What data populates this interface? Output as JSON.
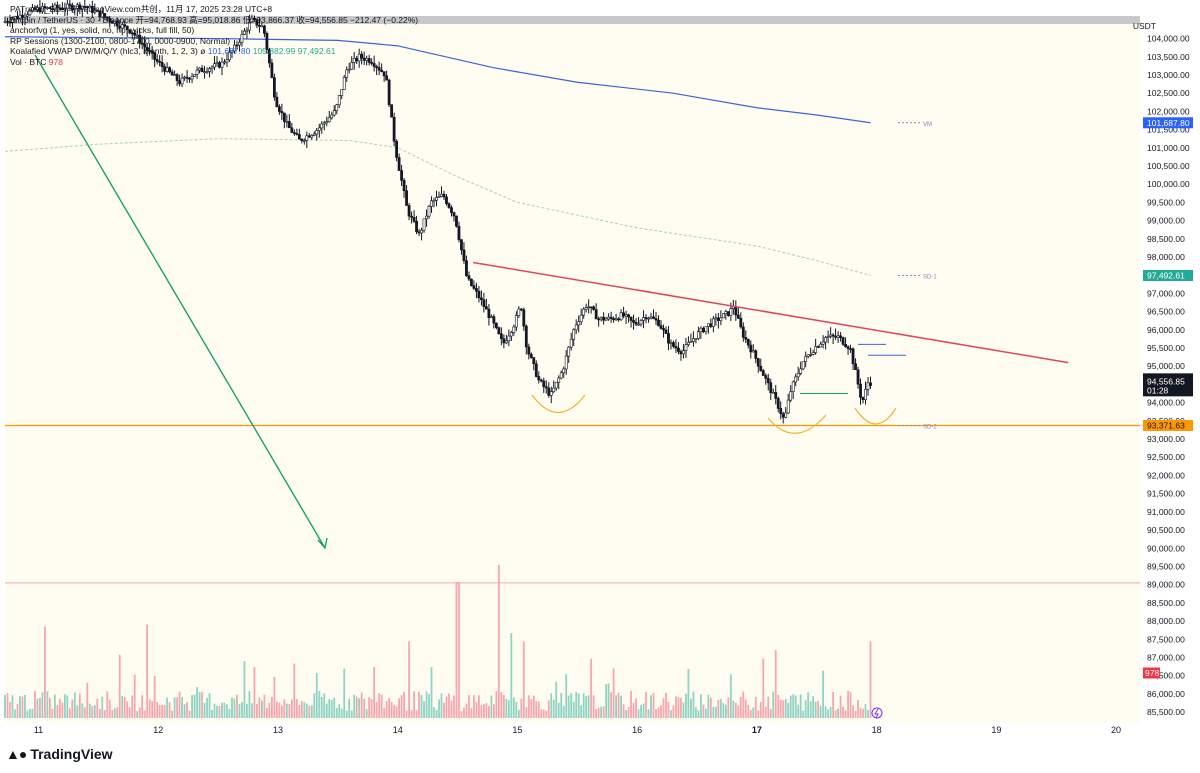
{
  "header": {
    "top_text": "PATrader_Buer与TradingView.com共创，11月 17, 2025 23:28 UTC+8"
  },
  "legend": {
    "symbol_line": "Bitcoin / TetherUS · 30 · Binance  开=94,768.93  高=95,018.86  低=93,866.37  收=94,556.85  −212.47 (−0.22%)",
    "anchoredvwap": "anchorfvg (1, yes, solid, no, no, wicks, full fill, 50)",
    "rp_sessions": "RP Sessions (1300-2100, 0800-1700, 0000-0900, Normal)",
    "koalafied_prefix": "Koalafied VWAP D/W/M/Q/Y  (hlc3, Month, 1, 2, 3)  ø",
    "koalafied_v1": "101,687.80",
    "koalafied_v2": "105,882.99",
    "koalafied_v3": "97,492.61",
    "vol_prefix": "Vol · BTC",
    "vol_value": "978"
  },
  "axis": {
    "currency": "USDT",
    "colors": {
      "up": "#22ab94",
      "down": "#f23645",
      "vwap": "#3b64d8",
      "sd": "#a5d6a7",
      "trendline": "#e0455a",
      "support": "#ff9800",
      "candles": "#131722",
      "background": "#fffdf1"
    }
  },
  "footer": {
    "brand": "TradingView"
  },
  "chart_data": {
    "type": "candlestick",
    "title": "Bitcoin / TetherUS · 30 · Binance",
    "y_axis": {
      "unit": "USDT",
      "ylim": [
        85200,
        104400
      ],
      "ticks": [
        104000,
        103500,
        103000,
        102500,
        102000,
        101500,
        101000,
        100500,
        100000,
        99500,
        99000,
        98500,
        98000,
        97500,
        97000,
        96500,
        96000,
        95500,
        95000,
        94500,
        94000,
        93500,
        93000,
        92500,
        92000,
        91500,
        91000,
        90500,
        90000,
        89500,
        89000,
        88500,
        88000,
        87500,
        87000,
        86500,
        86000,
        85500
      ],
      "tick_labels": [
        "104,000.00",
        "103,500.00",
        "103,000.00",
        "102,500.00",
        "102,000.00",
        "101,500.00",
        "101,000.00",
        "100,500.00",
        "100,000.00",
        "99,500.00",
        "99,000.00",
        "98,500.00",
        "98,000.00",
        "97,500.00",
        "97,000.00",
        "96,500.00",
        "96,000.00",
        "95,500.00",
        "95,000.00",
        "94,500.00",
        "94,000.00",
        "93,500.00",
        "93,000.00",
        "92,500.00",
        "92,000.00",
        "91,500.00",
        "91,000.00",
        "90,500.00",
        "90,000.00",
        "89,500.00",
        "89,000.00",
        "88,500.00",
        "88,000.00",
        "87,500.00",
        "87,000.00",
        "86,500.00",
        "86,000.00",
        "85,500.00"
      ]
    },
    "x_axis": {
      "range": [
        10.72,
        20.2
      ],
      "ticks": [
        11,
        12,
        13,
        14,
        15,
        16,
        17,
        18,
        19,
        20
      ],
      "tick_labels": [
        "11",
        "12",
        "13",
        "14",
        "15",
        "16",
        "17",
        "18",
        "19",
        "20"
      ],
      "bold_tick": "17"
    },
    "price_path": [
      [
        10.72,
        104450
      ],
      [
        11.0,
        104800
      ],
      [
        11.4,
        104900
      ],
      [
        11.8,
        104200
      ],
      [
        12.0,
        103400
      ],
      [
        12.2,
        102800
      ],
      [
        12.35,
        103100
      ],
      [
        12.55,
        103300
      ],
      [
        12.65,
        103700
      ],
      [
        12.8,
        104500
      ],
      [
        12.9,
        104300
      ],
      [
        13.0,
        102300
      ],
      [
        13.1,
        101600
      ],
      [
        13.2,
        101200
      ],
      [
        13.35,
        101500
      ],
      [
        13.5,
        102000
      ],
      [
        13.6,
        103200
      ],
      [
        13.7,
        103500
      ],
      [
        13.8,
        103400
      ],
      [
        13.92,
        103000
      ],
      [
        14.0,
        101000
      ],
      [
        14.1,
        99300
      ],
      [
        14.2,
        98600
      ],
      [
        14.3,
        99500
      ],
      [
        14.4,
        99700
      ],
      [
        14.5,
        99100
      ],
      [
        14.6,
        97400
      ],
      [
        14.7,
        96900
      ],
      [
        14.8,
        96300
      ],
      [
        14.9,
        95600
      ],
      [
        15.0,
        96200
      ],
      [
        15.05,
        96700
      ],
      [
        15.1,
        95500
      ],
      [
        15.2,
        94600
      ],
      [
        15.3,
        94200
      ],
      [
        15.4,
        94900
      ],
      [
        15.5,
        96100
      ],
      [
        15.6,
        96700
      ],
      [
        15.7,
        96300
      ],
      [
        15.8,
        96300
      ],
      [
        15.9,
        96400
      ],
      [
        16.0,
        96150
      ],
      [
        16.1,
        96400
      ],
      [
        16.2,
        96200
      ],
      [
        16.3,
        95600
      ],
      [
        16.4,
        95400
      ],
      [
        16.5,
        95800
      ],
      [
        16.6,
        96100
      ],
      [
        16.7,
        96300
      ],
      [
        16.8,
        96500
      ],
      [
        16.82,
        96700
      ],
      [
        16.9,
        95900
      ],
      [
        17.0,
        95300
      ],
      [
        17.1,
        94600
      ],
      [
        17.2,
        93900
      ],
      [
        17.25,
        93500
      ],
      [
        17.3,
        94300
      ],
      [
        17.4,
        95100
      ],
      [
        17.5,
        95500
      ],
      [
        17.6,
        95800
      ],
      [
        17.7,
        95800
      ],
      [
        17.8,
        95500
      ],
      [
        17.9,
        94000
      ],
      [
        17.95,
        94557
      ]
    ],
    "volume": {
      "unit": "BTC",
      "last": 978,
      "spikes": [
        [
          11.05,
          0.35
        ],
        [
          11.9,
          0.55
        ],
        [
          12.8,
          0.3
        ],
        [
          13.8,
          0.3
        ],
        [
          14.1,
          0.45
        ],
        [
          14.5,
          0.8
        ],
        [
          14.85,
          0.9
        ],
        [
          14.95,
          0.5
        ],
        [
          15.05,
          0.45
        ],
        [
          17.05,
          0.35
        ],
        [
          17.15,
          0.4
        ],
        [
          17.95,
          0.45
        ]
      ]
    },
    "overlays": {
      "vwap": {
        "label": "VM",
        "value": "101,687.80"
      },
      "sd1": {
        "label": "SD-1",
        "value": "97,492.61"
      },
      "sd2": {
        "label": "SD-2"
      },
      "support_line": {
        "value": "93,371.63",
        "price": 93371.63
      },
      "trendline": {
        "from": [
          14.63,
          97850
        ],
        "to": [
          19.6,
          95100
        ]
      },
      "current_price": {
        "value": "94,556.85",
        "countdown": "01:28",
        "price": 94556.85
      },
      "volume_label": "978"
    }
  }
}
